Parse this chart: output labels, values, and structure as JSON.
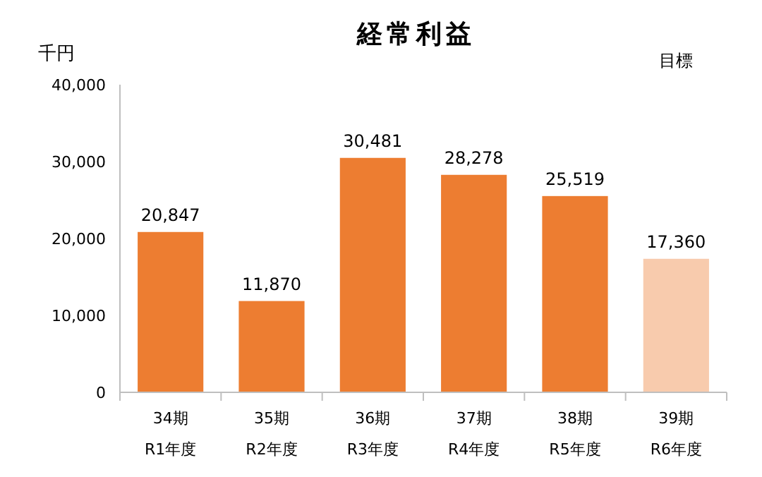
{
  "chart_data": {
    "type": "bar",
    "title": "経常利益",
    "ylabel": "千円",
    "categories": [
      "34期\nR1年度",
      "35期\nR2年度",
      "36期\nR3年度",
      "37期\nR4年度",
      "38期\nR5年度",
      "39期\nR6年度"
    ],
    "values": [
      20847,
      11870,
      30481,
      28278,
      25519,
      17360
    ],
    "colors": [
      "#ed7d31",
      "#ed7d31",
      "#ed7d31",
      "#ed7d31",
      "#ed7d31",
      "#f8cbad"
    ],
    "ylim": [
      0,
      40000
    ],
    "yticks": [
      {
        "value": 0,
        "label": "0"
      },
      {
        "value": 10000,
        "label": "10,000"
      },
      {
        "value": 20000,
        "label": "20,000"
      },
      {
        "value": 30000,
        "label": "30,000"
      },
      {
        "value": 40000,
        "label": "40,000"
      }
    ],
    "value_labels": [
      "20,847",
      "11,870",
      "30,481",
      "28,278",
      "25,519",
      "17,360"
    ],
    "annotations": [
      "目標"
    ]
  }
}
